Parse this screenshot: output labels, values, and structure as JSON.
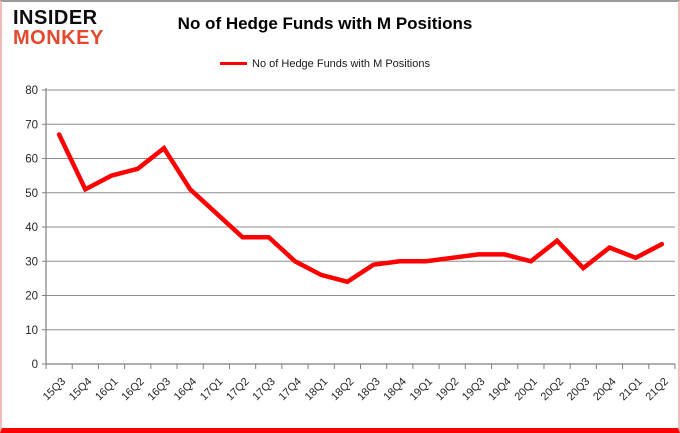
{
  "logo": {
    "line1": "INSIDER",
    "line2": "MONKEY"
  },
  "chart_data": {
    "type": "line",
    "title": "No of Hedge Funds with M Positions",
    "legend_position": "top",
    "grid": true,
    "categories": [
      "15Q3",
      "15Q4",
      "16Q1",
      "16Q2",
      "16Q3",
      "16Q4",
      "17Q1",
      "17Q2",
      "17Q3",
      "17Q4",
      "18Q1",
      "18Q2",
      "18Q3",
      "18Q4",
      "19Q1",
      "19Q2",
      "19Q3",
      "19Q4",
      "20Q1",
      "20Q2",
      "20Q3",
      "20Q4",
      "21Q1",
      "21Q2"
    ],
    "series": [
      {
        "name": "No of Hedge Funds with M Positions",
        "values": [
          67,
          51,
          55,
          57,
          63,
          51,
          44,
          37,
          37,
          30,
          26,
          24,
          29,
          30,
          30,
          31,
          32,
          32,
          30,
          36,
          28,
          34,
          31,
          35
        ]
      }
    ],
    "ylim": [
      0,
      80
    ],
    "ytick_step": 10,
    "colors": {
      "line": "#fe0000",
      "grid": "#8e8e8e",
      "axis": "#7f7f7f",
      "tick_label": "#262626",
      "logo_red": "#e2492f",
      "border_pink": "#f2bcbc",
      "border_bottom": "#fe0000"
    }
  }
}
